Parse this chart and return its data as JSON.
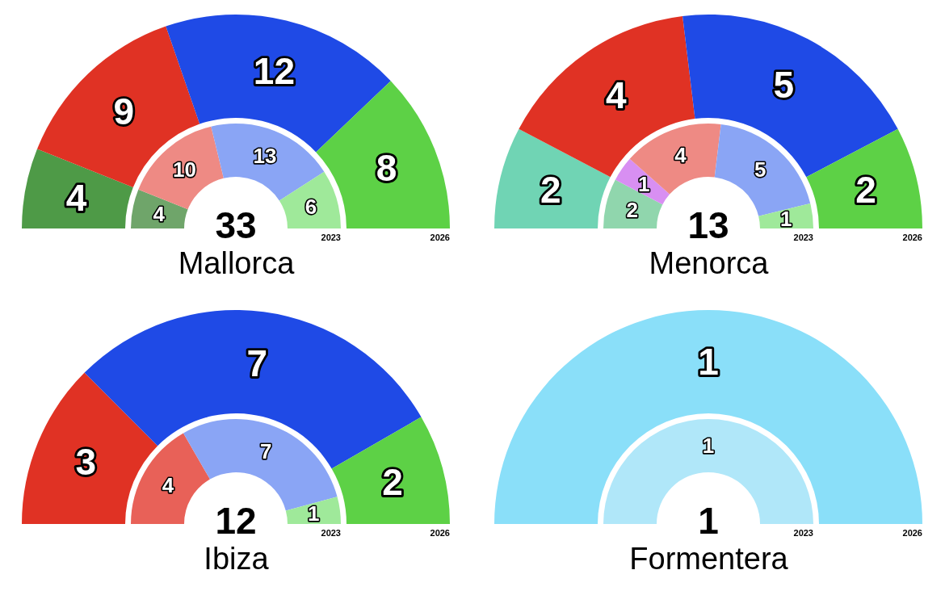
{
  "chart_data": [
    {
      "type": "donut",
      "title": "Mallorca",
      "categories": [
        null,
        null,
        null,
        null
      ],
      "data_labels": true,
      "annotations": [
        "33"
      ],
      "series": [
        {
          "name": "2026",
          "values": [
            4,
            9,
            12,
            8
          ],
          "colors": [
            "#4e9a47",
            "#e03224",
            "#1f4ae6",
            "#5dd146"
          ]
        },
        {
          "name": "2023",
          "values": [
            4,
            10,
            13,
            6
          ],
          "colors": [
            "#6fa56a",
            "#ee8a84",
            "#8aa5f5",
            "#9fe99a"
          ]
        }
      ]
    },
    {
      "type": "donut",
      "title": "Menorca",
      "categories": [
        null,
        null,
        null,
        null,
        null
      ],
      "data_labels": true,
      "annotations": [
        "13"
      ],
      "series": [
        {
          "name": "2026",
          "values": [
            2,
            null,
            4,
            5,
            2
          ],
          "colors": [
            "#70d4b4",
            "#d88ff2",
            "#e03224",
            "#1f4ae6",
            "#5dd146"
          ]
        },
        {
          "name": "2023",
          "values": [
            2,
            1,
            4,
            5,
            1
          ],
          "colors": [
            "#90d6ad",
            "#d88ff2",
            "#ee8a84",
            "#8aa5f5",
            "#9fe99a"
          ]
        }
      ]
    },
    {
      "type": "donut",
      "title": "Ibiza",
      "categories": [
        null,
        null,
        null
      ],
      "data_labels": true,
      "annotations": [
        "12"
      ],
      "series": [
        {
          "name": "2026",
          "values": [
            3,
            7,
            2
          ],
          "colors": [
            "#e03224",
            "#1f4ae6",
            "#5dd146"
          ]
        },
        {
          "name": "2023",
          "values": [
            4,
            7,
            1
          ],
          "colors": [
            "#e86158",
            "#8aa5f5",
            "#9fe99a"
          ]
        }
      ]
    },
    {
      "type": "donut",
      "title": "Formentera",
      "categories": [
        null
      ],
      "data_labels": true,
      "annotations": [
        "1"
      ],
      "series": [
        {
          "name": "2026",
          "values": [
            1
          ],
          "colors": [
            "#8adff9"
          ]
        },
        {
          "name": "2023",
          "values": [
            1
          ],
          "colors": [
            "#b0e7f9"
          ]
        }
      ]
    }
  ]
}
